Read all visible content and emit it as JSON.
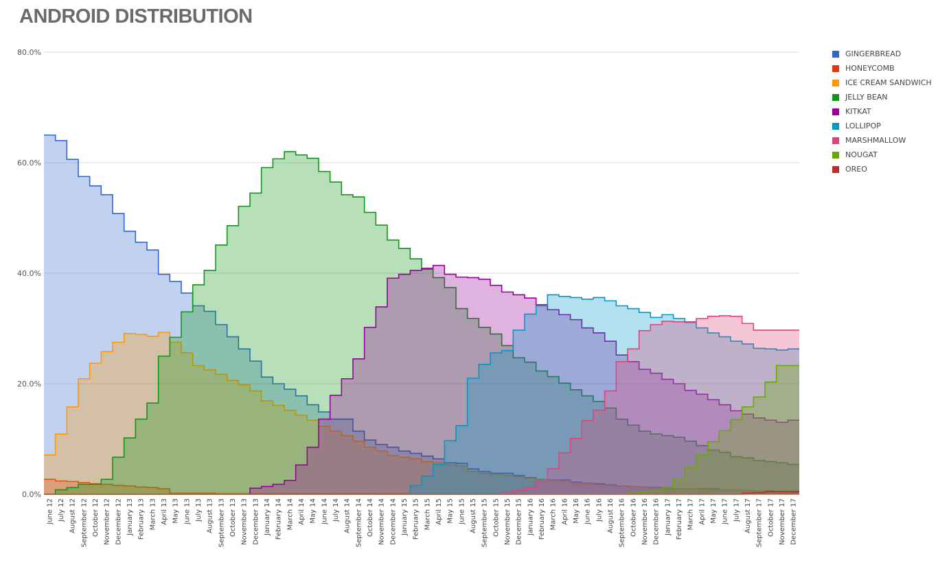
{
  "chart_data": {
    "type": "area",
    "step": true,
    "title": "ANDROID DISTRIBUTION",
    "xlabel": "",
    "ylabel": "",
    "ylim": [
      0,
      80
    ],
    "yticks": [
      "0.0%",
      "20.0%",
      "40.0%",
      "60.0%",
      "80.0%"
    ],
    "ytick_values": [
      0,
      20,
      40,
      60,
      80
    ],
    "grid": true,
    "legend": "right",
    "categories": [
      "June 12",
      "July 12",
      "August 12",
      "September 12",
      "October 12",
      "November 12",
      "December 12",
      "January 13",
      "February 13",
      "March 13",
      "April 13",
      "May 13",
      "June 13",
      "July 13",
      "August 13",
      "September 13",
      "October 13",
      "November 13",
      "December 13",
      "January 14",
      "February 14",
      "March 14",
      "April 14",
      "May 14",
      "June 14",
      "July 14",
      "August 14",
      "September 14",
      "October 14",
      "November 14",
      "December 14",
      "January 15",
      "February 15",
      "March 15",
      "April 15",
      "May 15",
      "June 15",
      "August 15",
      "September 15",
      "October 15",
      "November 15",
      "December 15",
      "January 16",
      "February 16",
      "March 16",
      "April 16",
      "May 16",
      "June 16",
      "July 16",
      "August 16",
      "September 16",
      "October 16",
      "November 16",
      "December 16",
      "January 17",
      "February 17",
      "March 17",
      "April 17",
      "May 17",
      "June 17",
      "July 17",
      "August 17",
      "September 17",
      "October 17",
      "November 17",
      "December 17"
    ],
    "series": [
      {
        "name": "GINGERBREAD",
        "color": "#3366cc",
        "values": [
          65.0,
          64.0,
          60.6,
          57.5,
          55.8,
          54.2,
          50.8,
          47.6,
          45.6,
          44.2,
          39.8,
          38.5,
          36.4,
          34.1,
          33.1,
          30.7,
          28.5,
          26.3,
          24.1,
          21.2,
          20.0,
          19.0,
          17.8,
          16.2,
          14.9,
          13.6,
          13.6,
          11.4,
          9.8,
          9.0,
          8.5,
          7.8,
          7.4,
          6.9,
          6.4,
          5.7,
          5.6,
          4.6,
          4.1,
          3.8,
          3.8,
          3.4,
          3.0,
          2.7,
          2.6,
          2.6,
          2.2,
          2.0,
          1.9,
          1.7,
          1.5,
          1.4,
          1.3,
          1.2,
          1.0,
          1.0,
          1.0,
          1.0,
          1.0,
          0.8,
          0.8,
          0.7,
          0.6,
          0.6,
          0.5,
          0.4
        ]
      },
      {
        "name": "HONEYCOMB",
        "color": "#dc3912",
        "values": [
          2.7,
          2.4,
          2.3,
          2.1,
          1.9,
          1.8,
          1.6,
          1.5,
          1.3,
          1.2,
          1.0,
          0.2,
          0.2,
          0.2,
          0.2,
          0.1,
          0.1,
          0.1,
          0.1,
          0.1,
          0.1,
          0.1,
          0.1,
          0.1,
          0.1,
          0.1,
          0.1,
          0.1,
          0.1,
          0.1,
          0.1,
          0.1,
          0.0,
          0.0,
          0.0,
          0.0,
          0.0,
          0.0,
          0.0,
          0.0,
          0.0,
          0.0,
          0.0,
          0.0,
          0.0,
          0.0,
          0.0,
          0.0,
          0.0,
          0.0,
          0.0,
          0.0,
          0.0,
          0.0,
          0.0,
          0.0,
          0.0,
          0.0,
          0.0,
          0.0,
          0.0,
          0.0,
          0.0,
          0.0,
          0.0,
          0.0
        ]
      },
      {
        "name": "ICE CREAM SANDWICH",
        "color": "#ff9900",
        "values": [
          7.1,
          10.9,
          15.8,
          20.9,
          23.7,
          25.8,
          27.5,
          29.1,
          28.9,
          28.6,
          29.3,
          27.5,
          25.6,
          23.3,
          22.5,
          21.7,
          20.6,
          19.8,
          18.7,
          16.9,
          16.1,
          15.2,
          14.3,
          13.4,
          12.3,
          11.4,
          10.6,
          9.6,
          8.5,
          7.8,
          7.0,
          6.7,
          6.4,
          5.9,
          5.7,
          5.3,
          5.1,
          4.1,
          3.7,
          3.6,
          3.4,
          3.2,
          2.9,
          2.7,
          2.5,
          2.3,
          2.0,
          1.9,
          1.7,
          1.6,
          1.5,
          1.4,
          1.3,
          1.3,
          1.1,
          1.0,
          1.0,
          0.9,
          0.8,
          0.8,
          0.8,
          0.7,
          0.6,
          0.6,
          0.5,
          0.5
        ]
      },
      {
        "name": "JELLY BEAN",
        "color": "#109618",
        "values": [
          0,
          0.8,
          1.2,
          1.8,
          1.8,
          2.7,
          6.7,
          10.2,
          13.6,
          16.5,
          25.0,
          28.4,
          33.0,
          37.9,
          40.5,
          45.1,
          48.6,
          52.1,
          54.5,
          59.1,
          60.7,
          62.0,
          61.4,
          60.8,
          58.4,
          56.5,
          54.2,
          53.8,
          51.0,
          48.7,
          46.0,
          44.5,
          42.6,
          40.7,
          39.2,
          37.4,
          33.6,
          31.8,
          30.2,
          29.0,
          26.9,
          24.7,
          23.9,
          22.3,
          21.3,
          20.1,
          18.9,
          17.8,
          16.8,
          15.6,
          13.6,
          12.5,
          11.4,
          10.9,
          10.6,
          10.3,
          9.6,
          8.8,
          8.0,
          7.6,
          6.8,
          6.6,
          6.1,
          5.9,
          5.7,
          5.4
        ]
      },
      {
        "name": "KITKAT",
        "color": "#990099",
        "values": [
          0,
          0,
          0,
          0,
          0,
          0,
          0,
          0,
          0,
          0,
          0,
          0,
          0,
          0,
          0,
          0,
          0,
          0,
          1.1,
          1.4,
          1.8,
          2.5,
          5.3,
          8.5,
          13.6,
          17.9,
          20.9,
          24.5,
          30.2,
          33.9,
          39.1,
          39.8,
          40.5,
          40.9,
          41.4,
          39.8,
          39.3,
          39.2,
          38.9,
          37.8,
          36.6,
          36.1,
          35.5,
          34.3,
          33.4,
          32.5,
          31.6,
          30.1,
          29.2,
          27.7,
          25.2,
          24.0,
          22.6,
          21.9,
          20.8,
          20.0,
          18.8,
          18.1,
          17.1,
          16.2,
          15.1,
          14.5,
          13.8,
          13.4,
          13.0,
          13.4
        ]
      },
      {
        "name": "LOLLIPOP",
        "color": "#0099c6",
        "values": [
          0,
          0,
          0,
          0,
          0,
          0,
          0,
          0,
          0,
          0,
          0,
          0,
          0,
          0,
          0,
          0,
          0,
          0,
          0,
          0,
          0,
          0,
          0,
          0,
          0,
          0,
          0,
          0,
          0,
          0,
          0,
          0,
          1.6,
          3.3,
          5.4,
          9.7,
          12.4,
          21.0,
          23.5,
          25.6,
          26.0,
          29.7,
          32.6,
          34.1,
          36.1,
          35.8,
          35.6,
          35.3,
          35.6,
          35.0,
          34.1,
          33.6,
          32.9,
          32.0,
          32.5,
          31.8,
          31.1,
          30.1,
          29.2,
          28.5,
          27.7,
          27.2,
          26.4,
          26.3,
          26.1,
          26.3
        ]
      },
      {
        "name": "MARSHMALLOW",
        "color": "#dd4477",
        "values": [
          0,
          0,
          0,
          0,
          0,
          0,
          0,
          0,
          0,
          0,
          0,
          0,
          0,
          0,
          0,
          0,
          0,
          0,
          0,
          0,
          0,
          0,
          0,
          0,
          0,
          0,
          0,
          0,
          0,
          0,
          0,
          0,
          0,
          0,
          0,
          0,
          0,
          0,
          0,
          0,
          0.3,
          0.7,
          1.2,
          2.3,
          4.6,
          7.5,
          10.1,
          13.3,
          15.2,
          18.7,
          24.0,
          26.3,
          29.6,
          30.7,
          31.3,
          31.2,
          31.2,
          31.8,
          32.2,
          32.3,
          32.2,
          30.9,
          29.7,
          29.7,
          29.7,
          29.7
        ]
      },
      {
        "name": "NOUGAT",
        "color": "#66aa00",
        "values": [
          0,
          0,
          0,
          0,
          0,
          0,
          0,
          0,
          0,
          0,
          0,
          0,
          0,
          0,
          0,
          0,
          0,
          0,
          0,
          0,
          0,
          0,
          0,
          0,
          0,
          0,
          0,
          0,
          0,
          0,
          0,
          0,
          0,
          0,
          0,
          0,
          0,
          0,
          0,
          0,
          0,
          0,
          0,
          0,
          0,
          0,
          0,
          0,
          0,
          0,
          0,
          0.3,
          0.5,
          0.6,
          1.3,
          2.8,
          4.9,
          7.1,
          9.5,
          11.5,
          13.5,
          15.8,
          17.6,
          20.3,
          23.3,
          23.3
        ]
      },
      {
        "name": "OREO",
        "color": "#b82e2e",
        "values": [
          0,
          0,
          0,
          0,
          0,
          0,
          0,
          0,
          0,
          0,
          0,
          0,
          0,
          0,
          0,
          0,
          0,
          0,
          0,
          0,
          0,
          0,
          0,
          0,
          0,
          0,
          0,
          0,
          0,
          0,
          0,
          0,
          0,
          0,
          0,
          0,
          0,
          0,
          0,
          0,
          0,
          0,
          0,
          0,
          0,
          0,
          0,
          0,
          0,
          0,
          0,
          0,
          0,
          0,
          0,
          0,
          0,
          0,
          0,
          0,
          0,
          0.2,
          0.3,
          0.5,
          0.5,
          0.5
        ]
      }
    ]
  }
}
